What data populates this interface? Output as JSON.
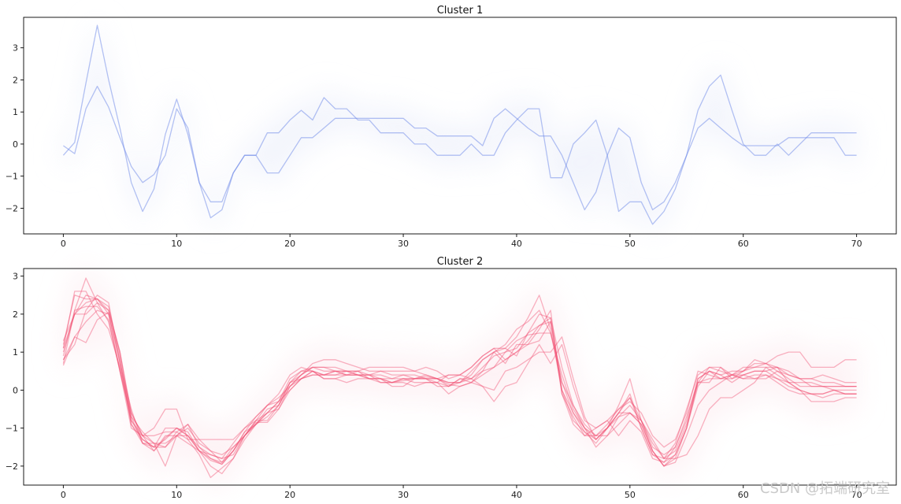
{
  "chart_data": [
    {
      "type": "line",
      "title": "Cluster 1",
      "xlabel": "",
      "ylabel": "",
      "xlim": [
        -3.5,
        73.5
      ],
      "ylim": [
        -2.8,
        3.95
      ],
      "xticks": [
        0,
        10,
        20,
        30,
        40,
        50,
        60,
        70
      ],
      "yticks": [
        -2,
        -1,
        0,
        1,
        2,
        3
      ],
      "line_color": "#6a86e8",
      "halo_color": "#eef1fb",
      "grid": false,
      "series": [
        {
          "values": [
            -0.05,
            -0.3,
            1.1,
            1.8,
            1.15,
            0.2,
            -0.7,
            -1.2,
            -0.95,
            -0.35,
            1.1,
            0.5,
            -1.2,
            -1.8,
            -1.8,
            -0.9,
            -0.35,
            -0.35,
            -0.9,
            -0.9,
            -0.35,
            0.2,
            0.2,
            0.5,
            0.8,
            0.8,
            0.8,
            0.8,
            0.8,
            0.8,
            0.8,
            0.5,
            0.5,
            0.25,
            0.25,
            0.25,
            0.25,
            -0.05,
            0.8,
            1.1,
            0.8,
            0.5,
            0.25,
            0.25,
            -0.35,
            -1.2,
            -2.05,
            -1.5,
            -0.35,
            0.5,
            0.2,
            -1.2,
            -2.05,
            -1.8,
            -1.2,
            -0.35,
            0.5,
            0.8,
            0.5,
            0.2,
            -0.05,
            -0.05,
            -0.05,
            -0.05,
            0.2,
            0.2,
            0.2,
            0.2,
            0.2,
            -0.35,
            -0.35
          ]
        },
        {
          "values": [
            -0.35,
            0.05,
            1.9,
            3.7,
            2.0,
            0.5,
            -1.2,
            -2.1,
            -1.4,
            0.3,
            1.4,
            0.3,
            -1.2,
            -2.3,
            -2.05,
            -0.9,
            -0.35,
            -0.35,
            0.35,
            0.35,
            0.75,
            1.05,
            0.75,
            1.45,
            1.1,
            1.1,
            0.75,
            0.75,
            0.35,
            0.35,
            0.35,
            0.0,
            0.0,
            -0.35,
            -0.35,
            -0.35,
            0.0,
            -0.35,
            -0.35,
            0.35,
            0.75,
            1.1,
            1.1,
            -1.05,
            -1.05,
            0.0,
            0.35,
            0.75,
            -0.35,
            -2.1,
            -1.8,
            -1.8,
            -2.5,
            -2.1,
            -1.4,
            -0.35,
            1.05,
            1.8,
            2.15,
            1.05,
            0.0,
            -0.35,
            -0.35,
            0.0,
            -0.35,
            0.0,
            0.35,
            0.35,
            0.35,
            0.35,
            0.35
          ]
        }
      ]
    },
    {
      "type": "line",
      "title": "Cluster 2",
      "xlabel": "",
      "ylabel": "",
      "xlim": [
        -3.5,
        73.5
      ],
      "ylim": [
        -2.5,
        3.2
      ],
      "xticks": [
        0,
        10,
        20,
        30,
        40,
        50,
        60,
        70
      ],
      "yticks": [
        -2,
        -1,
        0,
        1,
        2,
        3
      ],
      "line_color": "#f04a6e",
      "halo_color": "#fdeef2",
      "grid": false,
      "series": [
        {
          "values": [
            1.3,
            2.0,
            2.0,
            2.3,
            2.1,
            1.0,
            -0.7,
            -1.4,
            -1.4,
            -1.4,
            -1.2,
            -1.4,
            -1.6,
            -1.8,
            -1.95,
            -1.6,
            -1.2,
            -0.85,
            -0.85,
            -0.5,
            0.1,
            0.3,
            0.5,
            0.4,
            0.4,
            0.5,
            0.5,
            0.4,
            0.2,
            0.2,
            0.25,
            0.3,
            0.35,
            0.3,
            0.15,
            0.1,
            0.2,
            0.4,
            0.6,
            1.0,
            1.3,
            1.45,
            1.5,
            1.5,
            0.4,
            -0.5,
            -1.0,
            -1.2,
            -1.2,
            -0.9,
            -0.6,
            -0.9,
            -1.6,
            -2.0,
            -1.8,
            -1.0,
            0.3,
            0.5,
            0.3,
            0.3,
            0.5,
            0.8,
            0.7,
            0.5,
            0.3,
            0.1,
            0.1,
            0.1,
            0.0,
            -0.1,
            -0.1
          ]
        },
        {
          "values": [
            1.0,
            2.0,
            2.5,
            2.4,
            2.0,
            0.8,
            -0.9,
            -1.3,
            -1.5,
            -1.0,
            -1.0,
            -1.2,
            -1.5,
            -1.7,
            -1.8,
            -1.4,
            -1.0,
            -0.8,
            -0.8,
            -0.4,
            0.2,
            0.4,
            0.6,
            0.5,
            0.5,
            0.5,
            0.5,
            0.3,
            0.3,
            0.2,
            0.3,
            0.2,
            0.2,
            0.2,
            0.1,
            0.2,
            0.3,
            0.6,
            0.9,
            1.0,
            1.1,
            1.5,
            1.7,
            1.9,
            0.0,
            -0.8,
            -1.1,
            -1.3,
            -1.0,
            -0.6,
            -0.2,
            -1.0,
            -1.7,
            -1.8,
            -1.4,
            -0.5,
            0.4,
            0.6,
            0.5,
            0.4,
            0.6,
            0.6,
            0.6,
            0.4,
            0.2,
            0.0,
            -0.1,
            -0.1,
            0.0,
            0.0,
            0.0
          ]
        },
        {
          "values": [
            1.1,
            2.6,
            2.6,
            2.0,
            1.6,
            0.6,
            -0.6,
            -1.2,
            -1.6,
            -1.2,
            -1.2,
            -0.9,
            -1.3,
            -1.6,
            -1.9,
            -1.5,
            -1.2,
            -0.9,
            -0.6,
            -0.5,
            0.0,
            0.3,
            0.4,
            0.4,
            0.5,
            0.4,
            0.4,
            0.4,
            0.4,
            0.3,
            0.4,
            0.3,
            0.3,
            0.1,
            0.1,
            0.3,
            0.3,
            0.5,
            1.0,
            0.7,
            1.2,
            1.2,
            1.6,
            2.1,
            -0.1,
            -0.9,
            -1.2,
            -1.0,
            -0.8,
            -1.2,
            -0.8,
            -1.1,
            -1.8,
            -1.9,
            -1.5,
            -0.7,
            0.2,
            0.2,
            0.6,
            0.3,
            0.4,
            0.5,
            0.5,
            0.3,
            0.1,
            0.0,
            -0.1,
            -0.2,
            -0.1,
            -0.1,
            -0.1
          ]
        },
        {
          "values": [
            0.7,
            2.1,
            2.95,
            2.3,
            1.8,
            0.5,
            -0.8,
            -1.3,
            -1.5,
            -1.3,
            -1.0,
            -1.2,
            -1.6,
            -2.0,
            -2.2,
            -1.8,
            -1.3,
            -0.9,
            -0.7,
            -0.4,
            0.2,
            0.5,
            0.6,
            0.6,
            0.6,
            0.5,
            0.4,
            0.4,
            0.5,
            0.4,
            0.4,
            0.4,
            0.3,
            0.3,
            0.2,
            0.2,
            0.5,
            0.8,
            1.0,
            1.1,
            1.4,
            1.9,
            2.5,
            1.6,
            0.0,
            -0.6,
            -1.1,
            -1.4,
            -1.0,
            -0.4,
            0.3,
            -0.8,
            -1.6,
            -2.0,
            -1.7,
            -1.0,
            0.1,
            0.5,
            0.4,
            0.5,
            0.5,
            0.7,
            0.7,
            0.6,
            0.4,
            0.3,
            0.3,
            0.4,
            0.3,
            0.2,
            0.2
          ]
        },
        {
          "values": [
            0.65,
            1.4,
            1.25,
            1.85,
            2.05,
            0.7,
            -0.9,
            -1.4,
            -1.6,
            -1.25,
            -1.0,
            -1.1,
            -1.6,
            -1.85,
            -1.95,
            -1.6,
            -1.1,
            -0.9,
            -0.6,
            -0.3,
            0.2,
            0.3,
            0.4,
            0.4,
            0.4,
            0.4,
            0.4,
            0.3,
            0.3,
            0.2,
            0.2,
            0.1,
            0.2,
            0.2,
            -0.1,
            0.1,
            0.2,
            0.5,
            0.6,
            0.8,
            1.0,
            1.2,
            1.3,
            1.8,
            -0.1,
            -0.7,
            -1.2,
            -1.2,
            -1.0,
            -0.6,
            -0.1,
            -1.0,
            -1.7,
            -1.9,
            -1.7,
            -1.0,
            0.2,
            0.3,
            0.3,
            0.4,
            0.3,
            0.4,
            0.4,
            0.2,
            0.0,
            -0.1,
            -0.1,
            -0.1,
            0.0,
            -0.1,
            -0.1
          ]
        },
        {
          "values": [
            0.9,
            2.1,
            2.2,
            2.2,
            1.85,
            0.5,
            -0.7,
            -1.1,
            -1.4,
            -1.5,
            -1.1,
            -1.3,
            -1.7,
            -2.3,
            -2.05,
            -1.8,
            -1.2,
            -0.8,
            -0.6,
            -0.3,
            0.3,
            0.5,
            0.5,
            0.3,
            0.3,
            0.4,
            0.5,
            0.6,
            0.6,
            0.6,
            0.6,
            0.5,
            0.4,
            0.3,
            0.4,
            0.4,
            0.6,
            0.9,
            1.1,
            0.8,
            1.0,
            1.3,
            1.7,
            1.8,
            0.2,
            -0.6,
            -1.0,
            -1.3,
            -1.0,
            -0.7,
            -0.4,
            -0.8,
            -1.5,
            -1.7,
            -1.5,
            -0.8,
            0.3,
            0.5,
            0.4,
            0.2,
            0.4,
            0.5,
            0.5,
            0.6,
            0.5,
            0.3,
            0.3,
            0.2,
            0.2,
            0.1,
            0.1
          ]
        },
        {
          "values": [
            1.2,
            2.5,
            2.4,
            2.4,
            2.2,
            0.9,
            -0.8,
            -1.2,
            -1.0,
            -0.5,
            -0.5,
            -1.3,
            -1.3,
            -1.3,
            -1.3,
            -1.3,
            -1.0,
            -0.7,
            -0.4,
            -0.1,
            0.4,
            0.6,
            0.5,
            0.3,
            0.3,
            0.2,
            0.3,
            0.3,
            0.3,
            0.1,
            0.1,
            0.3,
            0.4,
            0.3,
            0.1,
            0.3,
            0.2,
            0.1,
            0.0,
            0.5,
            0.6,
            0.8,
            1.0,
            1.0,
            1.4,
            0.3,
            -0.7,
            -1.3,
            -1.0,
            -0.6,
            -0.6,
            -0.8,
            -1.3,
            -1.8,
            -1.8,
            -1.7,
            -1.2,
            -0.5,
            -0.2,
            -0.2,
            0.0,
            0.2,
            0.6,
            0.6,
            0.2,
            0.0,
            -0.3,
            -0.3,
            -0.3,
            -0.2,
            -0.2
          ]
        },
        {
          "values": [
            0.8,
            1.2,
            2.1,
            2.5,
            2.3,
            0.7,
            -0.5,
            -1.4,
            -1.5,
            -1.5,
            -1.2,
            -1.0,
            -1.4,
            -1.6,
            -1.7,
            -1.5,
            -1.2,
            -0.8,
            -0.4,
            -0.3,
            0.0,
            0.3,
            0.5,
            0.4,
            0.5,
            0.4,
            0.4,
            0.3,
            0.2,
            0.2,
            0.3,
            0.3,
            0.3,
            0.2,
            0.4,
            0.4,
            0.3,
            0.1,
            -0.3,
            0.1,
            0.2,
            0.7,
            1.2,
            0.7,
            1.2,
            0.1,
            -0.8,
            -1.0,
            -0.8,
            -0.5,
            -0.3,
            -0.6,
            -1.2,
            -1.5,
            -1.3,
            -0.6,
            0.5,
            0.4,
            0.3,
            0.4,
            0.3,
            0.3,
            0.3,
            0.5,
            0.4,
            0.3,
            0.1,
            0.1,
            0.1,
            0.1,
            0.1
          ]
        },
        {
          "values": [
            0.8,
            1.4,
            1.8,
            2.1,
            2.0,
            0.5,
            -1.0,
            -1.2,
            -1.4,
            -2.0,
            -1.2,
            -1.2,
            -1.6,
            -1.7,
            -1.8,
            -1.7,
            -1.2,
            -0.9,
            -0.5,
            -0.4,
            0.1,
            0.4,
            0.7,
            0.8,
            0.8,
            0.7,
            0.6,
            0.5,
            0.5,
            0.5,
            0.5,
            0.5,
            0.6,
            0.5,
            0.3,
            0.4,
            0.6,
            0.9,
            1.1,
            1.1,
            0.9,
            1.5,
            2.0,
            1.9,
            0.6,
            -0.4,
            -1.0,
            -1.5,
            -1.2,
            -0.7,
            -0.6,
            -0.9,
            -1.6,
            -2.0,
            -1.9,
            -1.2,
            -0.4,
            0.0,
            0.2,
            0.4,
            0.5,
            0.6,
            0.7,
            0.9,
            1.0,
            1.0,
            0.6,
            0.6,
            0.6,
            0.8,
            0.8
          ]
        },
        {
          "values": [
            1.1,
            2.0,
            2.3,
            2.4,
            2.1,
            1.0,
            -0.6,
            -1.2,
            -1.2,
            -1.1,
            -1.1,
            -0.9,
            -1.5,
            -1.8,
            -1.9,
            -1.6,
            -1.1,
            -0.7,
            -0.4,
            -0.2,
            0.1,
            0.4,
            0.6,
            0.6,
            0.5,
            0.5,
            0.4,
            0.4,
            0.3,
            0.3,
            0.3,
            0.3,
            0.3,
            0.3,
            0.2,
            0.2,
            0.4,
            0.8,
            1.0,
            1.2,
            1.6,
            1.8,
            2.1,
            1.5,
            0.2,
            -0.4,
            -0.9,
            -1.2,
            -0.9,
            -0.5,
            -0.2,
            -0.8,
            -1.4,
            -1.8,
            -1.6,
            -0.9,
            0.2,
            0.6,
            0.6,
            0.4,
            0.4,
            0.3,
            0.4,
            0.3,
            0.2,
            0.2,
            0.2,
            0.1,
            0.1,
            0.1,
            0.1
          ]
        }
      ]
    }
  ],
  "watermark": "CSDN @拓端研究室"
}
